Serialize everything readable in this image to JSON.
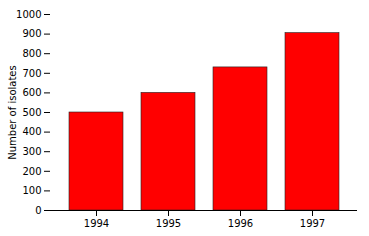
{
  "chart_data": {
    "type": "bar",
    "categories": [
      "1994",
      "1995",
      "1996",
      "1997"
    ],
    "values": [
      500,
      600,
      730,
      905
    ],
    "color": "#ff0000",
    "ylabel": "Number of isolates",
    "ylim": [
      0,
      1000
    ],
    "yticks": [
      0,
      100,
      200,
      300,
      400,
      500,
      600,
      700,
      800,
      900,
      1000
    ],
    "grid": false
  }
}
